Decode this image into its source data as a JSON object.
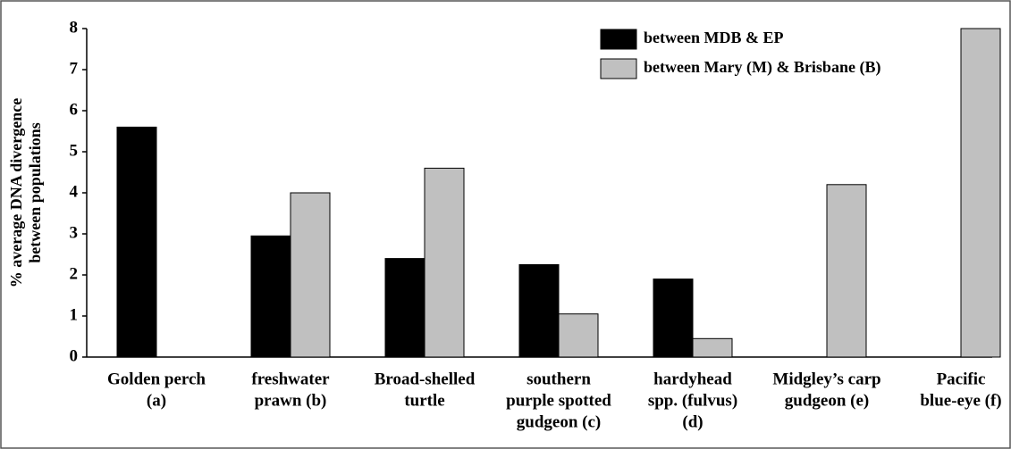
{
  "chart_data": {
    "type": "bar",
    "y_label": [
      "% average DNA divergence",
      "between populations"
    ],
    "categories": [
      [
        "Golden perch",
        "(a)"
      ],
      [
        "freshwater",
        "prawn (b)"
      ],
      [
        "Broad-shelled",
        "turtle"
      ],
      [
        "southern",
        "purple spotted",
        "gudgeon (c)"
      ],
      [
        "hardyhead",
        "spp. (fulvus)",
        "(d)"
      ],
      [
        "Midgley’s carp",
        "gudgeon (e)"
      ],
      [
        "Pacific",
        "blue-eye (f)"
      ]
    ],
    "series": [
      {
        "name": "between MDB & EP",
        "color": "#000000",
        "values": [
          5.6,
          2.95,
          2.4,
          2.25,
          1.9,
          null,
          null
        ]
      },
      {
        "name": "between Mary (M) & Brisbane (B)",
        "color": "#c0c0c0",
        "values": [
          null,
          4.0,
          4.6,
          1.05,
          0.45,
          4.2,
          8
        ]
      }
    ],
    "ylim": [
      0,
      8
    ],
    "yticks": [
      0,
      1,
      2,
      3,
      4,
      5,
      6,
      7,
      8
    ],
    "legend": "upper right"
  }
}
